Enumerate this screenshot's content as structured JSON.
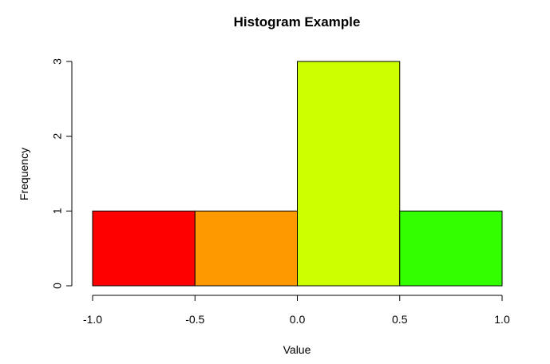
{
  "chart_data": {
    "type": "histogram",
    "title": "Histogram Example",
    "x_label": "Value",
    "y_label": "Frequency",
    "bins": [
      -1,
      -0.5,
      0,
      0.5,
      1
    ],
    "values": [
      1,
      1,
      3,
      1
    ],
    "colors": [
      "#FF0000",
      "#FF9900",
      "#CCFF00",
      "#33FF00"
    ],
    "xlim": [
      -1,
      1
    ],
    "ylim": [
      0,
      3
    ],
    "xticks": [
      {
        "value": -1,
        "label": "-1.0"
      },
      -0.5,
      {
        "value": 0,
        "label": "0.0"
      },
      0.5,
      {
        "value": 1,
        "label": "1.0"
      }
    ],
    "yticks": [
      0,
      1,
      2,
      3
    ]
  }
}
